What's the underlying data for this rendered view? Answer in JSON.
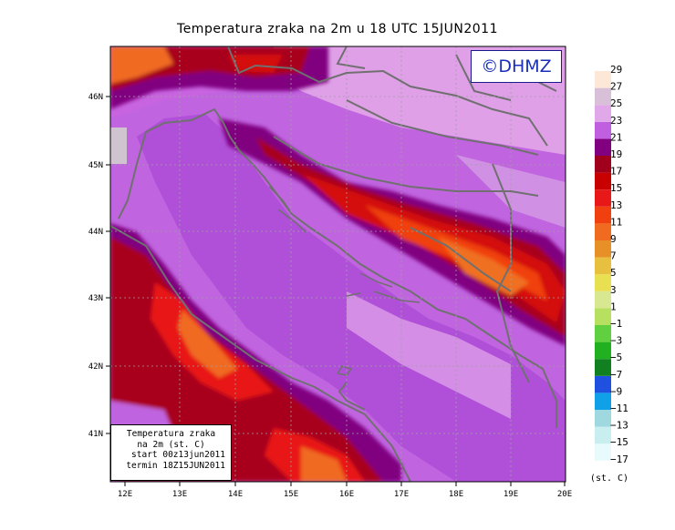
{
  "title": "Temperatura zraka na 2m u 18 UTC 15JUN2011",
  "logo_text": "©DHMZ",
  "info_box": {
    "line1": "Temperatura zraka",
    "line2": "na 2m (st. C)",
    "line3": "start 00z13jun2011",
    "line4": "termin 18Z15JUN2011"
  },
  "lon_ticks": [
    "12E",
    "13E",
    "14E",
    "15E",
    "16E",
    "17E",
    "18E",
    "19E",
    "20E"
  ],
  "lat_ticks": [
    "46N",
    "45N",
    "44N",
    "43N",
    "42N",
    "41N"
  ],
  "legend": {
    "unit": "(st. C)",
    "labels": [
      "29",
      "27",
      "25",
      "23",
      "21",
      "19",
      "17",
      "15",
      "13",
      "11",
      "9",
      "7",
      "5",
      "3",
      "1",
      "−1",
      "−3",
      "−5",
      "−7",
      "−9",
      "−11",
      "−13",
      "−15",
      "−17"
    ],
    "colors": [
      "#fde8d8",
      "#d8c0d8",
      "#e0a8e8",
      "#c060e0",
      "#800080",
      "#a0001c",
      "#c80000",
      "#e81818",
      "#f04010",
      "#f06a20",
      "#e89028",
      "#e8c040",
      "#e8e050",
      "#d8e890",
      "#b8e060",
      "#60d040",
      "#20b020",
      "#108020",
      "#2050e0",
      "#10a0e8",
      "#a0d8e0",
      "#c8eef0",
      "#e8fafc"
    ]
  },
  "colors": {
    "sea": "#b050d8",
    "land_warm": "#e0a0e8",
    "coast": "#707070"
  }
}
